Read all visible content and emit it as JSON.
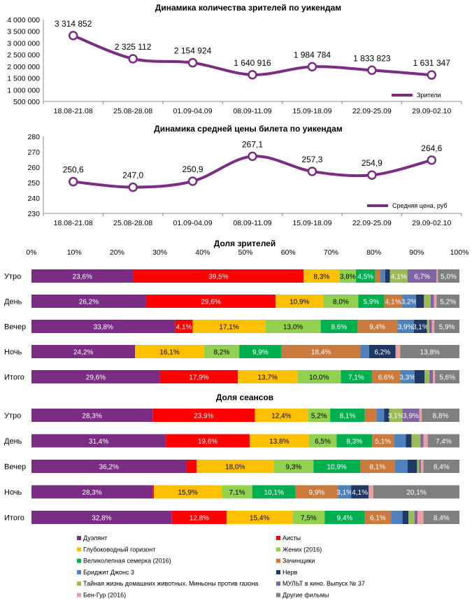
{
  "palette": {
    "line": "#7b2c83",
    "grid": "#d9d9d9",
    "axis": "#8c8c8c",
    "text": "#000000"
  },
  "chart_data": [
    {
      "type": "line",
      "title": "Динамика количества зрителей по уикендам",
      "categories": [
        "18.08-21.08",
        "25.08-28.08",
        "01.09-04.09",
        "08.09-11.09",
        "15.09-18.09",
        "22.09-25.09",
        "29.09-02.10"
      ],
      "values": [
        3314852,
        2325112,
        2154924,
        1640916,
        1984784,
        1833823,
        1631347
      ],
      "value_labels": [
        "3 314 852",
        "2 325 112",
        "2 154 924",
        "1 640 916",
        "1 984 784",
        "1 833 823",
        "1 631 347"
      ],
      "ylim": [
        500000,
        4000000
      ],
      "yticks": [
        500000,
        1000000,
        1500000,
        2000000,
        2500000,
        3000000,
        3500000,
        4000000
      ],
      "ytick_labels": [
        "500 000",
        "1 000 000",
        "1 500 000",
        "2 000 000",
        "2 500 000",
        "3 000 000",
        "3 500 000",
        "4 000 000"
      ],
      "legend": "Зрители",
      "legend_position": "bottom-right"
    },
    {
      "type": "line",
      "title": "Динамика средней цены билета по уикендам",
      "categories": [
        "18.08-21.08",
        "25.08-28.08",
        "01.09-04.09",
        "08.09-11.09",
        "15.09-18.09",
        "22.09-25.09",
        "29.09-02.10"
      ],
      "values": [
        250.6,
        247.0,
        250.9,
        267.1,
        257.3,
        254.9,
        264.6
      ],
      "value_labels": [
        "250,6",
        "247,0",
        "250,9",
        "267,1",
        "257,3",
        "254,9",
        "264,6"
      ],
      "ylim": [
        230,
        280
      ],
      "yticks": [
        230,
        240,
        250,
        260,
        270,
        280
      ],
      "ytick_labels": [
        "230",
        "240",
        "250",
        "260",
        "270",
        "280"
      ],
      "legend": "Средняя цена, руб",
      "legend_position": "bottom-right"
    },
    {
      "type": "bar",
      "orientation": "horizontal-stacked-100",
      "title": "Доля зрителей",
      "xticks": [
        "0%",
        "10%",
        "20%",
        "30%",
        "40%",
        "50%",
        "60%",
        "70%",
        "80%",
        "90%",
        "100%"
      ],
      "categories": [
        "Утро",
        "День",
        "Вечер",
        "Ночь",
        "Итого"
      ],
      "series_colors": [
        "#7b2c83",
        "#ff0000",
        "#ffc000",
        "#92d050",
        "#00b050",
        "#c97a3c",
        "#4f81bd",
        "#1f3864",
        "#9bbb59",
        "#8064a2",
        "#e8a0a0",
        "#7f7f7f"
      ],
      "rows": [
        {
          "values": [
            23.6,
            39.5,
            8.3,
            3.8,
            4.5,
            1.2,
            1.1,
            1.1,
            4.1,
            6.7,
            0.3,
            5.0
          ],
          "labels": [
            "23,6%",
            "39,5%",
            "8,3%",
            "3,8%",
            "4,5%",
            "",
            "",
            "",
            "4,1%",
            "6,7%",
            "",
            "5,0%"
          ]
        },
        {
          "values": [
            26.2,
            29.6,
            10.9,
            8.0,
            5.9,
            4.1,
            3.2,
            1.8,
            1.5,
            0.8,
            0.6,
            5.2
          ],
          "labels": [
            "26,2%",
            "29,6%",
            "10,9%",
            "8,0%",
            "5,9%",
            "4,1%",
            "3,2%",
            "",
            "",
            "",
            "",
            "5,2%"
          ]
        },
        {
          "values": [
            33.8,
            4.1,
            17.1,
            13.0,
            8.6,
            9.4,
            3.9,
            3.1,
            0.5,
            0.6,
            0.6,
            5.9
          ],
          "labels": [
            "33,8%",
            "4,1%",
            "17,1%",
            "13,0%",
            "8,6%",
            "9,4%",
            "3,9%",
            "3,1%",
            "",
            "",
            "",
            "5,9%"
          ]
        },
        {
          "values": [
            24.2,
            0.0,
            16.1,
            8.2,
            9.9,
            18.4,
            2.0,
            6.2,
            0.0,
            0.0,
            1.1,
            13.8
          ],
          "labels": [
            "24,2%",
            "",
            "16,1%",
            "8,2%",
            "9,9%",
            "18,4%",
            "",
            "6,2%",
            "",
            "",
            "",
            "13,8%"
          ]
        },
        {
          "values": [
            29.6,
            17.9,
            13.7,
            10.0,
            7.1,
            6.6,
            3.3,
            2.3,
            1.1,
            0.8,
            0.5,
            5.6
          ],
          "labels": [
            "29,6%",
            "17,9%",
            "13,7%",
            "10,0%",
            "7,1%",
            "6,6%",
            "3,3%",
            "",
            "",
            "",
            "",
            "5,6%"
          ]
        }
      ]
    },
    {
      "type": "bar",
      "orientation": "horizontal-stacked-100",
      "title": "Доля сеансов",
      "categories": [
        "Утро",
        "День",
        "Вечер",
        "Ночь",
        "Итого"
      ],
      "series_colors": [
        "#7b2c83",
        "#ff0000",
        "#ffc000",
        "#92d050",
        "#00b050",
        "#c97a3c",
        "#4f81bd",
        "#1f3864",
        "#9bbb59",
        "#8064a2",
        "#e8a0a0",
        "#7f7f7f"
      ],
      "rows": [
        {
          "values": [
            28.3,
            23.9,
            12.4,
            5.2,
            8.1,
            2.7,
            1.8,
            1.2,
            3.1,
            3.9,
            0.6,
            8.8
          ],
          "labels": [
            "28,3%",
            "23,9%",
            "12,4%",
            "5,2%",
            "8,1%",
            "",
            "",
            "",
            "3,1%",
            "3,9%",
            "",
            "8,8%"
          ]
        },
        {
          "values": [
            31.4,
            19.6,
            13.8,
            6.5,
            8.3,
            5.1,
            2.8,
            1.3,
            2.1,
            0.7,
            1.0,
            7.4
          ],
          "labels": [
            "31,4%",
            "19,6%",
            "13,8%",
            "6,5%",
            "8,3%",
            "5,1%",
            "",
            "",
            "",
            "",
            "",
            "7,4%"
          ]
        },
        {
          "values": [
            36.2,
            2.4,
            18.0,
            9.3,
            10.9,
            8.1,
            3.0,
            2.2,
            0.5,
            0.4,
            0.6,
            8.4
          ],
          "labels": [
            "36,2%",
            "",
            "18,0%",
            "9,3%",
            "10,9%",
            "8,1%",
            "",
            "",
            "",
            "",
            "",
            "8,4%"
          ]
        },
        {
          "values": [
            28.3,
            0.3,
            15.9,
            7.1,
            10.1,
            9.9,
            3.1,
            4.1,
            0.0,
            0.0,
            1.1,
            20.1
          ],
          "labels": [
            "28,3%",
            "",
            "15,9%",
            "7,1%",
            "10,1%",
            "9,9%",
            "3,1%",
            "4,1%",
            "",
            "",
            "",
            "20,1%"
          ]
        },
        {
          "values": [
            32.8,
            12.8,
            15.4,
            7.5,
            9.4,
            6.1,
            2.7,
            1.4,
            1.4,
            0.7,
            1.4,
            8.4
          ],
          "labels": [
            "32,8%",
            "12,8%",
            "15,4%",
            "7,5%",
            "9,4%",
            "6,1%",
            "",
            "",
            "",
            "",
            "",
            "8,4%"
          ]
        }
      ]
    }
  ],
  "legend": {
    "items": [
      {
        "label": "Дуэлянт",
        "color": "#7b2c83"
      },
      {
        "label": "Аисты",
        "color": "#ff0000"
      },
      {
        "label": "Глубоководный горизонт",
        "color": "#ffc000"
      },
      {
        "label": "Жених (2016)",
        "color": "#92d050"
      },
      {
        "label": "Великолепная семерка (2016)",
        "color": "#00b050"
      },
      {
        "label": "Зачинщики",
        "color": "#c97a3c"
      },
      {
        "label": "Бриджит Джонс 3",
        "color": "#4f81bd"
      },
      {
        "label": "Нерв",
        "color": "#1f3864"
      },
      {
        "label": "Тайная жизнь домашних животных. Миньоны против газона",
        "color": "#9bbb59"
      },
      {
        "label": "МУЛЬТ в кино. Выпуск № 37",
        "color": "#8064a2"
      },
      {
        "label": "Бен-Гур (2016)",
        "color": "#e8a0a0"
      },
      {
        "label": "Другие фильмы",
        "color": "#7f7f7f"
      }
    ]
  }
}
